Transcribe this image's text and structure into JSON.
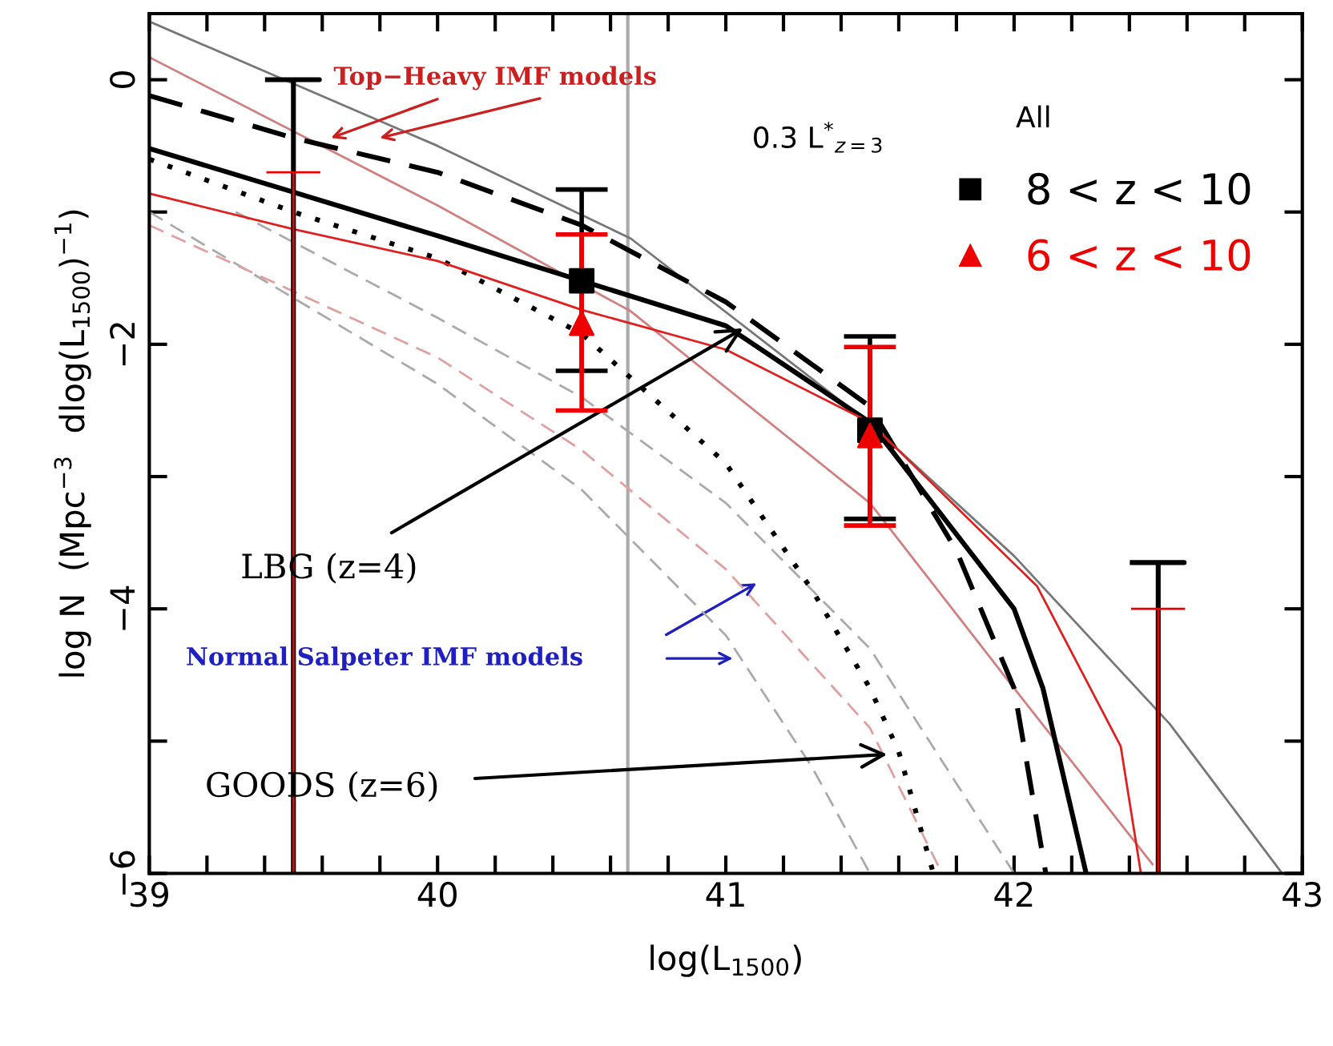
{
  "chart_data": {
    "type": "scatter",
    "xlabel": "log(L$_{1500}$)",
    "ylabel": "log N  (Mpc$^{−3}$  dlog(L$_{1500}$)$^{−1}$)",
    "xlim": [
      39,
      43
    ],
    "ylim": [
      -6,
      0.5
    ],
    "xticks": [
      39,
      {
        "value": 39.2,
        "label": null
      },
      {
        "value": 39.4,
        "label": null
      },
      {
        "value": 39.6,
        "label": null
      },
      {
        "value": 39.8,
        "label": null
      },
      40,
      {
        "value": 40.2,
        "label": null
      },
      {
        "value": 40.4,
        "label": null
      },
      {
        "value": 40.6,
        "label": null
      },
      {
        "value": 40.8,
        "label": null
      },
      41,
      {
        "value": 41.2,
        "label": null
      },
      {
        "value": 41.4,
        "label": null
      },
      {
        "value": 41.6,
        "label": null
      },
      {
        "value": 41.8,
        "label": null
      },
      42,
      {
        "value": 42.2,
        "label": null
      },
      {
        "value": 42.4,
        "label": null
      },
      {
        "value": 42.6,
        "label": null
      },
      {
        "value": 42.8,
        "label": null
      },
      43
    ],
    "yticks": [
      -6,
      {
        "value": -5,
        "label": null
      },
      -4,
      {
        "value": -3,
        "label": null
      },
      -2,
      {
        "value": -1,
        "label": null
      },
      0
    ],
    "grid": false,
    "legend": "top right",
    "series": [
      {
        "type": "line",
        "color": "#777777",
        "line_style": "solid",
        "marker": "none",
        "x": [
          39,
          40,
          40.67,
          41.5,
          42.0,
          42.54,
          42.93
        ],
        "values": [
          0.44,
          -0.5,
          -1.2,
          -2.6,
          -3.6,
          -4.87,
          -6
        ]
      },
      {
        "type": "line",
        "color": "#d08080",
        "line_style": "solid",
        "marker": "none",
        "x": [
          39,
          40,
          40.67,
          41.5,
          42.0,
          42.48
        ],
        "values": [
          0.17,
          -0.95,
          -1.75,
          -3.2,
          -4.6,
          -5.93
        ]
      },
      {
        "type": "line",
        "color": "#aaaaaa",
        "line_style": "dashed",
        "marker": "none",
        "x": [
          39,
          40,
          40.5,
          41,
          41.3,
          41.5
        ],
        "values": [
          -1.0,
          -2.3,
          -3.1,
          -4.2,
          -5.2,
          -6
        ]
      },
      {
        "type": "line",
        "color": "#e0a0a0",
        "line_style": "dashed",
        "marker": "none",
        "x": [
          39,
          40,
          40.5,
          41,
          41.5,
          41.75
        ],
        "values": [
          -1.1,
          -2.1,
          -2.8,
          -3.7,
          -4.9,
          -6
        ]
      },
      {
        "type": "line",
        "color": "#aaaaaa",
        "line_style": "dashed",
        "marker": "none",
        "x": [
          39.3,
          40,
          40.5,
          41,
          41.5,
          42.0
        ],
        "values": [
          -1.0,
          -1.8,
          -2.4,
          -3.2,
          -4.3,
          -6
        ]
      },
      {
        "type": "line",
        "color": "#000000",
        "line_style": "dotted",
        "marker": "none",
        "x": [
          39,
          39.5,
          40,
          40.5,
          41,
          41.3,
          41.5,
          41.6,
          41.72
        ],
        "values": [
          -0.6,
          -1.0,
          -1.35,
          -1.92,
          -2.9,
          -3.86,
          -4.6,
          -5.08,
          -6
        ]
      },
      {
        "type": "line",
        "color": "#000000",
        "line_style": "dashed",
        "marker": "none",
        "x": [
          39,
          39.5,
          40,
          40.5,
          41,
          41.5,
          41.8,
          42,
          42.11
        ],
        "values": [
          -0.12,
          -0.44,
          -0.7,
          -1.1,
          -1.68,
          -2.47,
          -3.56,
          -4.6,
          -6
        ]
      },
      {
        "type": "line",
        "color": "#000000",
        "line_style": "solid",
        "marker": "none",
        "x": [
          39,
          39.5,
          40,
          40.5,
          41,
          41.5,
          42,
          42.1,
          42.25
        ],
        "values": [
          -0.52,
          -0.85,
          -1.18,
          -1.52,
          -1.86,
          -2.59,
          -4.0,
          -4.6,
          -6
        ]
      },
      {
        "type": "line",
        "color": "#e02020",
        "line_style": "solid",
        "marker": "none",
        "x": [
          39,
          39.5,
          40,
          40.5,
          41,
          41.5,
          42.08,
          42.37,
          42.44
        ],
        "values": [
          -0.86,
          -1.13,
          -1.37,
          -1.74,
          -2.04,
          -2.59,
          -3.83,
          -5.04,
          -6
        ]
      },
      {
        "type": "line",
        "color": "#000000",
        "line_style": "solid",
        "marker": "none",
        "x": [
          39.41,
          39.59,
          39.5,
          39.5
        ],
        "values": [
          0.0,
          0.0,
          0.0,
          -6
        ]
      },
      {
        "type": "line",
        "color": "#000000",
        "line_style": "solid",
        "marker": "none",
        "x": [
          42.41,
          42.59,
          42.5,
          42.5
        ],
        "values": [
          -3.65,
          -3.65,
          -3.65,
          -6
        ]
      },
      {
        "type": "line",
        "color": "#ee0000",
        "line_style": "solid",
        "marker": "none",
        "x": [
          39.41,
          39.59,
          39.5,
          39.5
        ],
        "values": [
          -0.7,
          -0.7,
          -0.7,
          -6
        ]
      },
      {
        "type": "line",
        "color": "#ee0000",
        "line_style": "solid",
        "marker": "none",
        "x": [
          42.41,
          42.59,
          42.5,
          42.5
        ],
        "values": [
          -4.0,
          -4.0,
          -4.0,
          -6
        ]
      },
      {
        "name": "8 < z < 10",
        "color": "#000000",
        "marker": "square",
        "x": [
          40.5,
          41.5
        ],
        "values": [
          -1.52,
          -2.65
        ],
        "errors": [
          [
            -2.2,
            -0.83
          ],
          [
            -3.32,
            -1.94
          ]
        ]
      },
      {
        "name": "6 < z < 10",
        "color": "#ee0000",
        "marker": "triangle",
        "x": [
          40.5,
          41.5
        ],
        "values": [
          -1.84,
          -2.69
        ],
        "errors": [
          [
            -2.5,
            -1.17
          ],
          [
            -3.37,
            -2.02
          ]
        ]
      }
    ],
    "ref_lines": [
      {
        "axis": "x",
        "value": 40.66,
        "color": "#aaaaaa"
      }
    ],
    "annotations": [
      {
        "text": "Top−Heavy IMF models",
        "x": 39.63,
        "y": -0.44
      },
      "0.3 L$^{*}$$_{z=3}$",
      "All",
      {
        "text": "LBG (z=4)",
        "x": 41.06,
        "y": -1.88
      },
      "Normal Salpeter IMF models",
      {
        "text": "GOODS (z=6)",
        "x": 41.56,
        "y": -5.1
      }
    ]
  }
}
